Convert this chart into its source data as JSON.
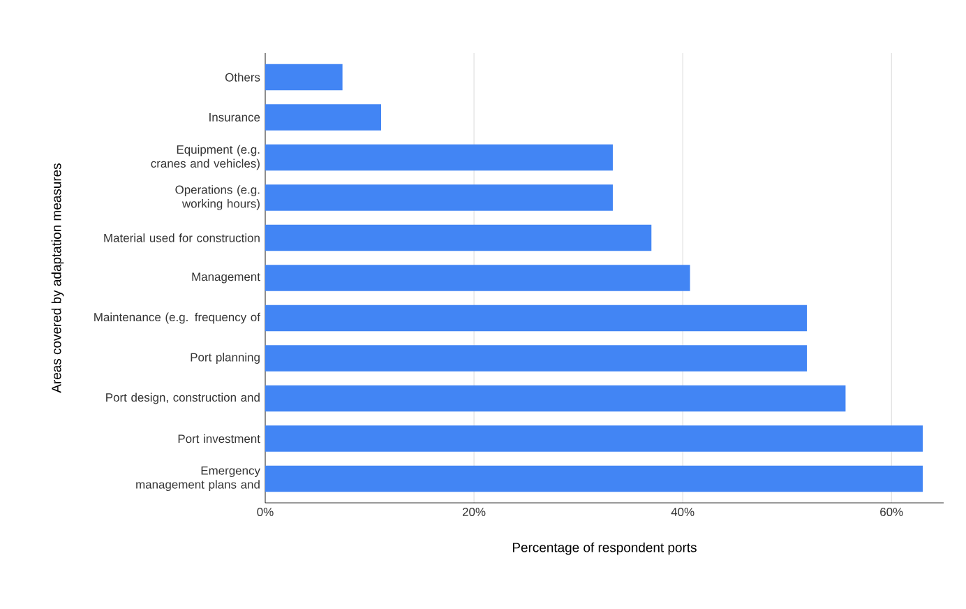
{
  "chart_data": {
    "type": "bar",
    "orientation": "horizontal",
    "xlabel": "Percentage of respondent ports",
    "ylabel": "Areas covered by adaptation measures",
    "categories": [
      "Others",
      "Insurance",
      "Equipment (e.g. cranes and vehicles)",
      "Operations (e.g. working hours)",
      "Material used for construction",
      "Management",
      "Maintenance (e.g. frequency of",
      "Port planning",
      "Port design, construction and",
      "Port investment",
      "Emergency management plans and"
    ],
    "values": [
      7.4,
      11.1,
      33.3,
      33.3,
      37.0,
      40.7,
      51.9,
      51.9,
      55.6,
      63.0,
      63.0
    ],
    "color": "#4285f4",
    "xlim": [
      0,
      65
    ],
    "xticks": [
      {
        "value": 0,
        "label": "0%"
      },
      {
        "value": 20,
        "label": "20%"
      },
      {
        "value": 40,
        "label": "40%"
      },
      {
        "value": 60,
        "label": "60%"
      }
    ],
    "grid": "x"
  }
}
